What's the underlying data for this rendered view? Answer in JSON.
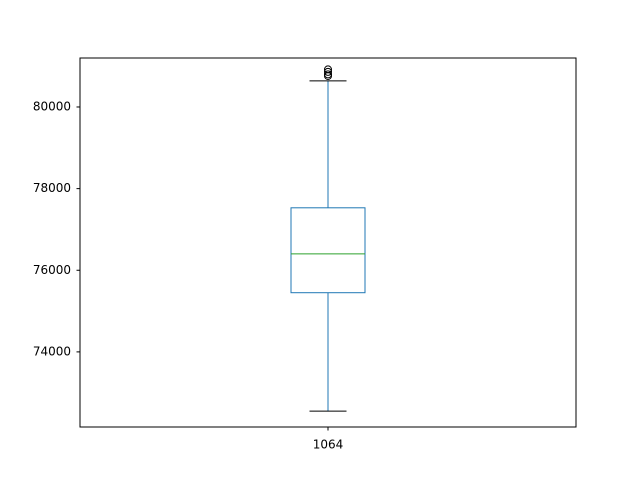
{
  "chart_data": {
    "type": "box",
    "title": "",
    "xlabel": "",
    "ylabel": "",
    "ylim": [
      72160,
      81200
    ],
    "yticks": [
      74000,
      76000,
      78000,
      80000
    ],
    "categories": [
      "1064"
    ],
    "boxes": [
      {
        "label": "1064",
        "whisker_low": 72550,
        "q1": 75450,
        "median": 76400,
        "q3": 77530,
        "whisker_high": 80640,
        "outliers": [
          80760,
          80800,
          80860,
          80920
        ]
      }
    ],
    "grid": false,
    "legend": "none"
  },
  "colors": {
    "box": "#1f77b4",
    "median": "#2ca02c",
    "axes": "#000000"
  },
  "xtick_labels": [
    "1064"
  ],
  "ytick_labels": [
    "74000",
    "76000",
    "78000",
    "80000"
  ]
}
